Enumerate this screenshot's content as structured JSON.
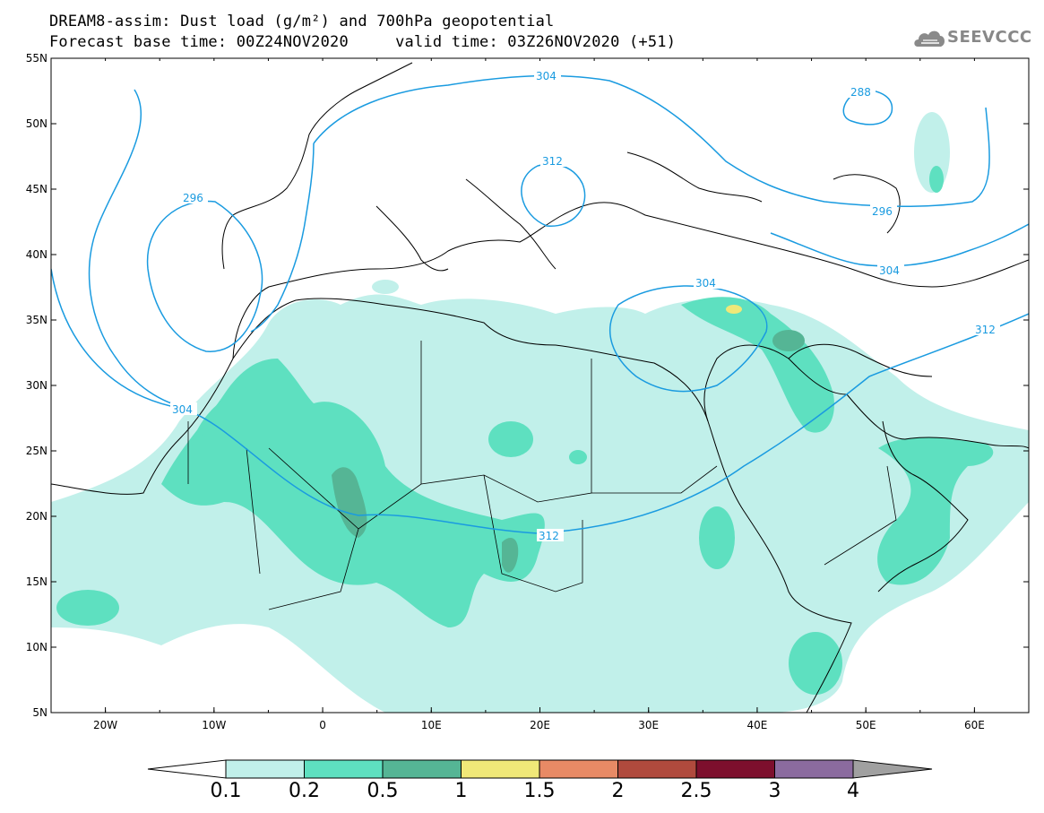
{
  "title": {
    "line1": "DREAM8-assim: Dust load (g/m²) and 700hPa geopotential",
    "line2": "Forecast base time: 00Z24NOV2020     valid time: 03Z26NOV2020 (+51)"
  },
  "logo": {
    "text": "SEEVCCC",
    "icon": "cloud-logo-icon"
  },
  "map": {
    "lon_range": [
      -25,
      65
    ],
    "lat_range": [
      5,
      55
    ],
    "lon_ticks": [
      {
        "value": -20,
        "label": "20W"
      },
      {
        "value": -10,
        "label": "10W"
      },
      {
        "value": 0,
        "label": "0"
      },
      {
        "value": 10,
        "label": "10E"
      },
      {
        "value": 20,
        "label": "20E"
      },
      {
        "value": 30,
        "label": "30E"
      },
      {
        "value": 40,
        "label": "40E"
      },
      {
        "value": 50,
        "label": "50E"
      },
      {
        "value": 60,
        "label": "60E"
      }
    ],
    "lat_ticks": [
      {
        "value": 55,
        "label": "55N"
      },
      {
        "value": 50,
        "label": "50N"
      },
      {
        "value": 45,
        "label": "45N"
      },
      {
        "value": 40,
        "label": "40N"
      },
      {
        "value": 35,
        "label": "35N"
      },
      {
        "value": 30,
        "label": "30N"
      },
      {
        "value": 25,
        "label": "25N"
      },
      {
        "value": 20,
        "label": "20N"
      },
      {
        "value": 15,
        "label": "15N"
      },
      {
        "value": 10,
        "label": "10N"
      },
      {
        "value": 5,
        "label": "5N"
      }
    ],
    "contour_labels": [
      {
        "text": "304",
        "lon": 11.0,
        "lat": 53.8
      },
      {
        "text": "288",
        "lon": 48.3,
        "lat": 52.7
      },
      {
        "text": "312",
        "lon": 21.5,
        "lat": 46.7
      },
      {
        "text": "296",
        "lon": -12.0,
        "lat": 45.2
      },
      {
        "text": "296",
        "lon": 50.6,
        "lat": 42.5
      },
      {
        "text": "304",
        "lon": 52.0,
        "lat": 39.7
      },
      {
        "text": "304",
        "lon": 36.2,
        "lat": 36.5
      },
      {
        "text": "312",
        "lon": 63.0,
        "lat": 33.3
      },
      {
        "text": "304",
        "lon": -14.1,
        "lat": 26.9
      },
      {
        "text": "312",
        "lon": 21.2,
        "lat": 17.3
      }
    ]
  },
  "colors": {
    "ocean": "#ffffff",
    "land_border": "#000000",
    "contour": "#1a9be0",
    "dust_01": "#c1f0ea",
    "dust_02": "#5ee0c0",
    "dust_05": "#55b595",
    "dust_1": "#f0e878",
    "dust_15": "#e88a65",
    "dust_2": "#b04a3d",
    "dust_25": "#7d0f2d",
    "dust_3": "#8b6b9f",
    "dust_4": "#a0a0a0"
  },
  "colorbar": {
    "segments": [
      "#c1f0ea",
      "#5ee0c0",
      "#55b595",
      "#f0e878",
      "#e88a65",
      "#b04a3d",
      "#7d0f2d",
      "#8b6b9f"
    ],
    "left_arrow_color": "#ffffff",
    "right_arrow_color": "#a0a0a0",
    "labels": [
      "0.1",
      "0.2",
      "0.5",
      "1",
      "1.5",
      "2",
      "2.5",
      "3",
      "4"
    ]
  }
}
